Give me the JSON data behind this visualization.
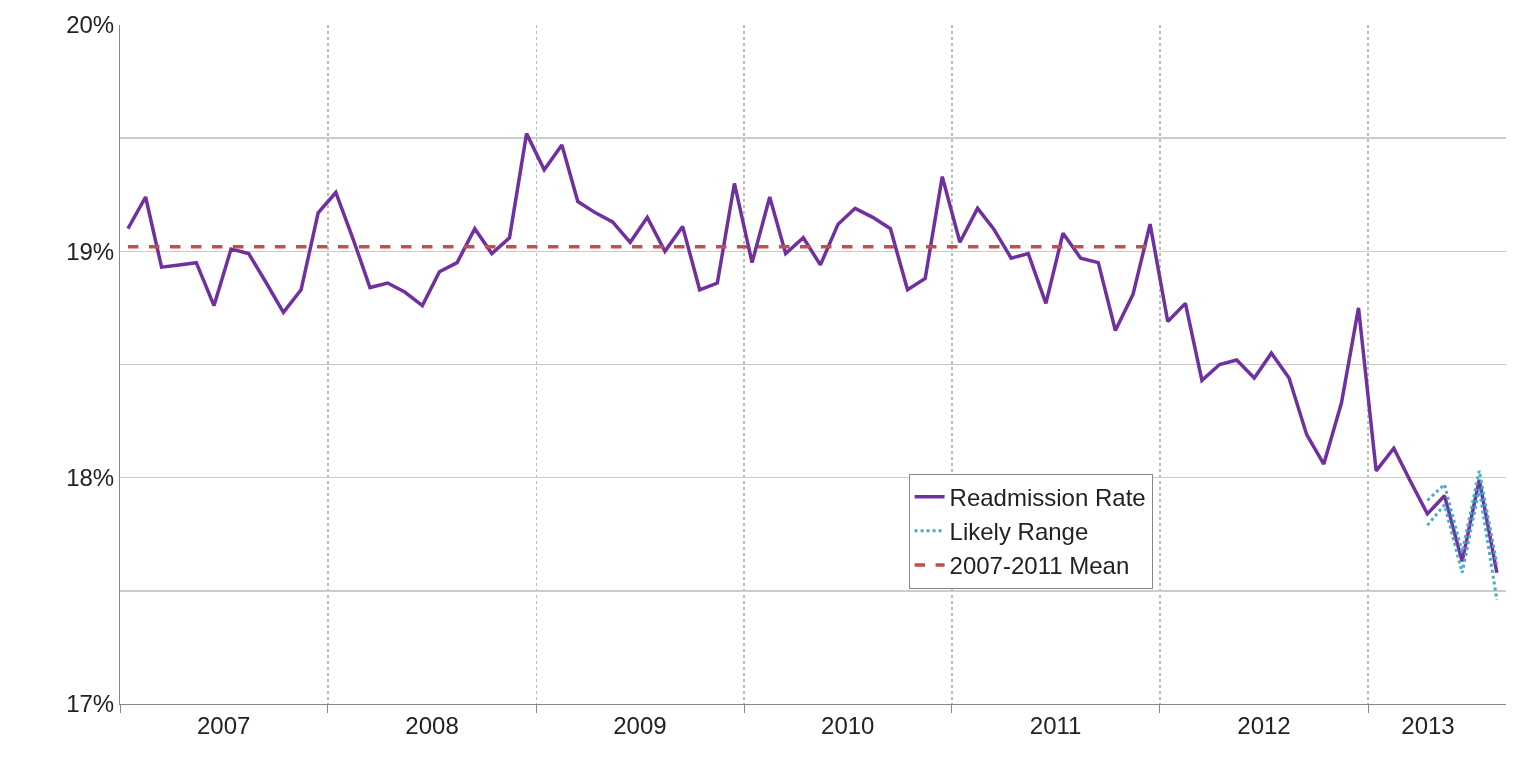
{
  "chart_data": {
    "type": "line",
    "x": [
      "2007-01-15",
      "2007-02-15",
      "2007-03-15",
      "2007-04-15",
      "2007-05-15",
      "2007-06-15",
      "2007-07-15",
      "2007-08-15",
      "2007-09-15",
      "2007-10-15",
      "2007-11-15",
      "2007-12-15",
      "2008-01-15",
      "2008-02-15",
      "2008-03-15",
      "2008-04-15",
      "2008-05-15",
      "2008-06-15",
      "2008-07-15",
      "2008-08-15",
      "2008-09-15",
      "2008-10-15",
      "2008-11-15",
      "2008-12-15",
      "2009-01-15",
      "2009-02-15",
      "2009-03-15",
      "2009-04-15",
      "2009-05-15",
      "2009-06-15",
      "2009-07-15",
      "2009-08-15",
      "2009-09-15",
      "2009-10-15",
      "2009-11-15",
      "2009-12-15",
      "2010-01-15",
      "2010-02-15",
      "2010-03-15",
      "2010-04-15",
      "2010-05-15",
      "2010-06-15",
      "2010-07-15",
      "2010-08-15",
      "2010-09-15",
      "2010-10-15",
      "2010-11-15",
      "2010-12-15",
      "2011-01-15",
      "2011-02-15",
      "2011-03-15",
      "2011-04-15",
      "2011-05-15",
      "2011-06-15",
      "2011-07-15",
      "2011-08-15",
      "2011-09-15",
      "2011-10-15",
      "2011-11-15",
      "2011-12-15",
      "2012-01-15",
      "2012-02-15",
      "2012-03-15",
      "2012-04-15",
      "2012-05-15",
      "2012-06-15",
      "2012-07-15",
      "2012-08-15",
      "2012-09-15",
      "2012-10-15",
      "2012-11-15",
      "2012-12-15",
      "2013-01-15",
      "2013-02-15",
      "2013-03-15",
      "2013-04-15",
      "2013-05-15",
      "2013-06-15",
      "2013-07-15",
      "2013-08-15"
    ],
    "series": [
      {
        "name": "Readmission Rate",
        "color": "#7030a0",
        "line_style": "solid",
        "values": [
          19.1,
          19.24,
          18.93,
          18.94,
          18.95,
          18.76,
          19.01,
          18.99,
          18.86,
          18.73,
          18.83,
          19.17,
          19.26,
          19.05,
          18.84,
          18.86,
          18.82,
          18.76,
          18.91,
          18.95,
          19.1,
          18.99,
          19.06,
          19.52,
          19.36,
          19.47,
          19.22,
          19.17,
          19.13,
          19.04,
          19.15,
          19.0,
          19.11,
          18.83,
          18.86,
          19.3,
          18.95,
          19.24,
          18.99,
          19.06,
          18.94,
          19.12,
          19.19,
          19.15,
          19.1,
          18.83,
          18.88,
          19.33,
          19.04,
          19.19,
          19.1,
          18.97,
          18.99,
          18.77,
          19.08,
          18.97,
          18.95,
          18.65,
          18.81,
          19.12,
          18.69,
          18.77,
          18.43,
          18.5,
          18.52,
          18.44,
          18.55,
          18.44,
          18.19,
          18.06,
          18.33,
          18.75,
          18.03,
          18.13,
          17.99,
          17.84,
          17.92,
          17.63,
          17.99,
          17.58
        ]
      },
      {
        "name": "Likely Range",
        "color": "#4bacc6",
        "line_style": "dotted",
        "x": [
          "2013-04-15",
          "2013-05-15",
          "2013-06-15",
          "2013-07-15",
          "2013-08-15"
        ],
        "values": [
          17.9,
          17.97,
          17.67,
          18.03,
          17.62
        ]
      },
      {
        "color": "#4bacc6",
        "line_style": "dotted",
        "x": [
          "2013-04-15",
          "2013-05-15",
          "2013-06-15",
          "2013-07-15",
          "2013-08-15"
        ],
        "values": [
          17.79,
          17.88,
          17.58,
          17.95,
          17.46
        ]
      },
      {
        "name": "2007-2011 Mean",
        "color": "#c0504d",
        "line_style": "dashed",
        "x": [
          "2007-01-15",
          "2011-12-15"
        ],
        "values": [
          19.02,
          19.02
        ]
      }
    ],
    "xlim": [
      "2007-01-01",
      "2013-08-31"
    ],
    "xticks": [
      {
        "value": "2007-01-01",
        "label": null
      },
      {
        "value": "2007-07-02",
        "label": "2007"
      },
      {
        "value": "2008-01-01",
        "label": null
      },
      {
        "value": "2008-07-02",
        "label": "2008"
      },
      {
        "value": "2009-01-01",
        "label": null
      },
      {
        "value": "2009-07-02",
        "label": "2009"
      },
      {
        "value": "2010-01-01",
        "label": null
      },
      {
        "value": "2010-07-02",
        "label": "2010"
      },
      {
        "value": "2011-01-01",
        "label": null
      },
      {
        "value": "2011-07-02",
        "label": "2011"
      },
      {
        "value": "2012-01-01",
        "label": null
      },
      {
        "value": "2012-07-02",
        "label": "2012"
      },
      {
        "value": "2013-01-01",
        "label": null
      },
      {
        "value": "2013-04-16",
        "label": "2013"
      }
    ],
    "ylim": [
      17,
      20
    ],
    "yticks": [
      {
        "value": 17,
        "label": "17%"
      },
      {
        "value": 17.5,
        "label": null
      },
      {
        "value": 18,
        "label": "18%"
      },
      {
        "value": 18.5,
        "label": null
      },
      {
        "value": 19,
        "label": "19%"
      },
      {
        "value": 19.5,
        "label": null
      },
      {
        "value": 20,
        "label": "20%"
      }
    ],
    "grid": true,
    "legend": "bottom right",
    "marker": "none"
  }
}
